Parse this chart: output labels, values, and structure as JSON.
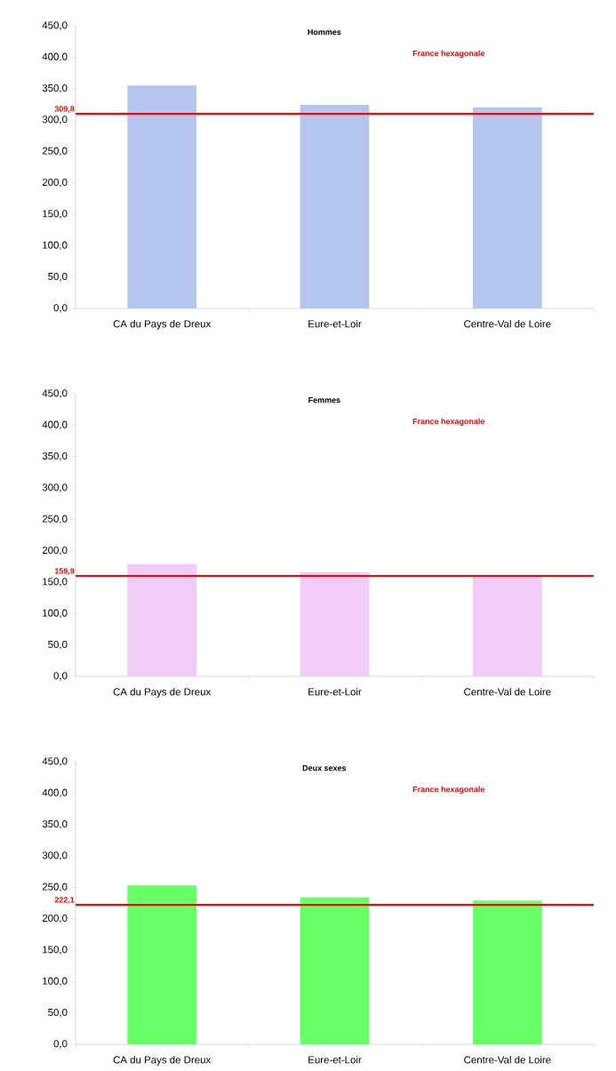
{
  "chart_data": [
    {
      "type": "bar",
      "title": "Hommes",
      "categories": [
        "CA du Pays de Dreux",
        "Eure-et-Loir",
        "Centre-Val de Loire"
      ],
      "values": [
        355,
        324,
        320
      ],
      "color": "#b4c6ee",
      "ylim": [
        0,
        450
      ],
      "yticks": [
        {
          "value": 0,
          "label": "0,0"
        },
        {
          "value": 50,
          "label": "50,0"
        },
        {
          "value": 100,
          "label": "100,0"
        },
        {
          "value": 150,
          "label": "150,0"
        },
        {
          "value": 200,
          "label": "200,0"
        },
        {
          "value": 250,
          "label": "250,0"
        },
        {
          "value": 300,
          "label": "300,0"
        },
        {
          "value": 350,
          "label": "350,0"
        },
        {
          "value": 400,
          "label": "400,0"
        },
        {
          "value": 450,
          "label": "450,0"
        }
      ],
      "ref_lines": [
        {
          "axis": "y",
          "value": 309.8,
          "label": "France hexagonale",
          "color": "#ff0000"
        }
      ],
      "annotations": [
        "309,8"
      ]
    },
    {
      "type": "bar",
      "title": "Femmes",
      "categories": [
        "CA du Pays de Dreux",
        "Eure-et-Loir",
        "Centre-Val de Loire"
      ],
      "values": [
        179,
        166,
        161
      ],
      "color": "#f0ccf6",
      "ylim": [
        0,
        450
      ],
      "yticks": [
        {
          "value": 0,
          "label": "0,0"
        },
        {
          "value": 50,
          "label": "50,0"
        },
        {
          "value": 100,
          "label": "100,0"
        },
        {
          "value": 150,
          "label": "150,0"
        },
        {
          "value": 200,
          "label": "200,0"
        },
        {
          "value": 250,
          "label": "250,0"
        },
        {
          "value": 300,
          "label": "300,0"
        },
        {
          "value": 350,
          "label": "350,0"
        },
        {
          "value": 400,
          "label": "400,0"
        },
        {
          "value": 450,
          "label": "450,0"
        }
      ],
      "ref_lines": [
        {
          "axis": "y",
          "value": 159.9,
          "label": "France hexagonale",
          "color": "#ff0000"
        }
      ],
      "annotations": [
        "159,9"
      ]
    },
    {
      "type": "bar",
      "title": "Deux sexes",
      "categories": [
        "CA du Pays de Dreux",
        "Eure-et-Loir",
        "Centre-Val de Loire"
      ],
      "values": [
        253,
        234,
        229
      ],
      "color": "#66ff66",
      "ylim": [
        0,
        450
      ],
      "yticks": [
        {
          "value": 0,
          "label": "0,0"
        },
        {
          "value": 50,
          "label": "50,0"
        },
        {
          "value": 100,
          "label": "100,0"
        },
        {
          "value": 150,
          "label": "150,0"
        },
        {
          "value": 200,
          "label": "200,0"
        },
        {
          "value": 250,
          "label": "250,0"
        },
        {
          "value": 300,
          "label": "300,0"
        },
        {
          "value": 350,
          "label": "350,0"
        },
        {
          "value": 400,
          "label": "400,0"
        },
        {
          "value": 450,
          "label": "450,0"
        }
      ],
      "ref_lines": [
        {
          "axis": "y",
          "value": 222.1,
          "label": "France hexagonale",
          "color": "#ff0000"
        }
      ],
      "annotations": [
        "222,1"
      ]
    }
  ]
}
